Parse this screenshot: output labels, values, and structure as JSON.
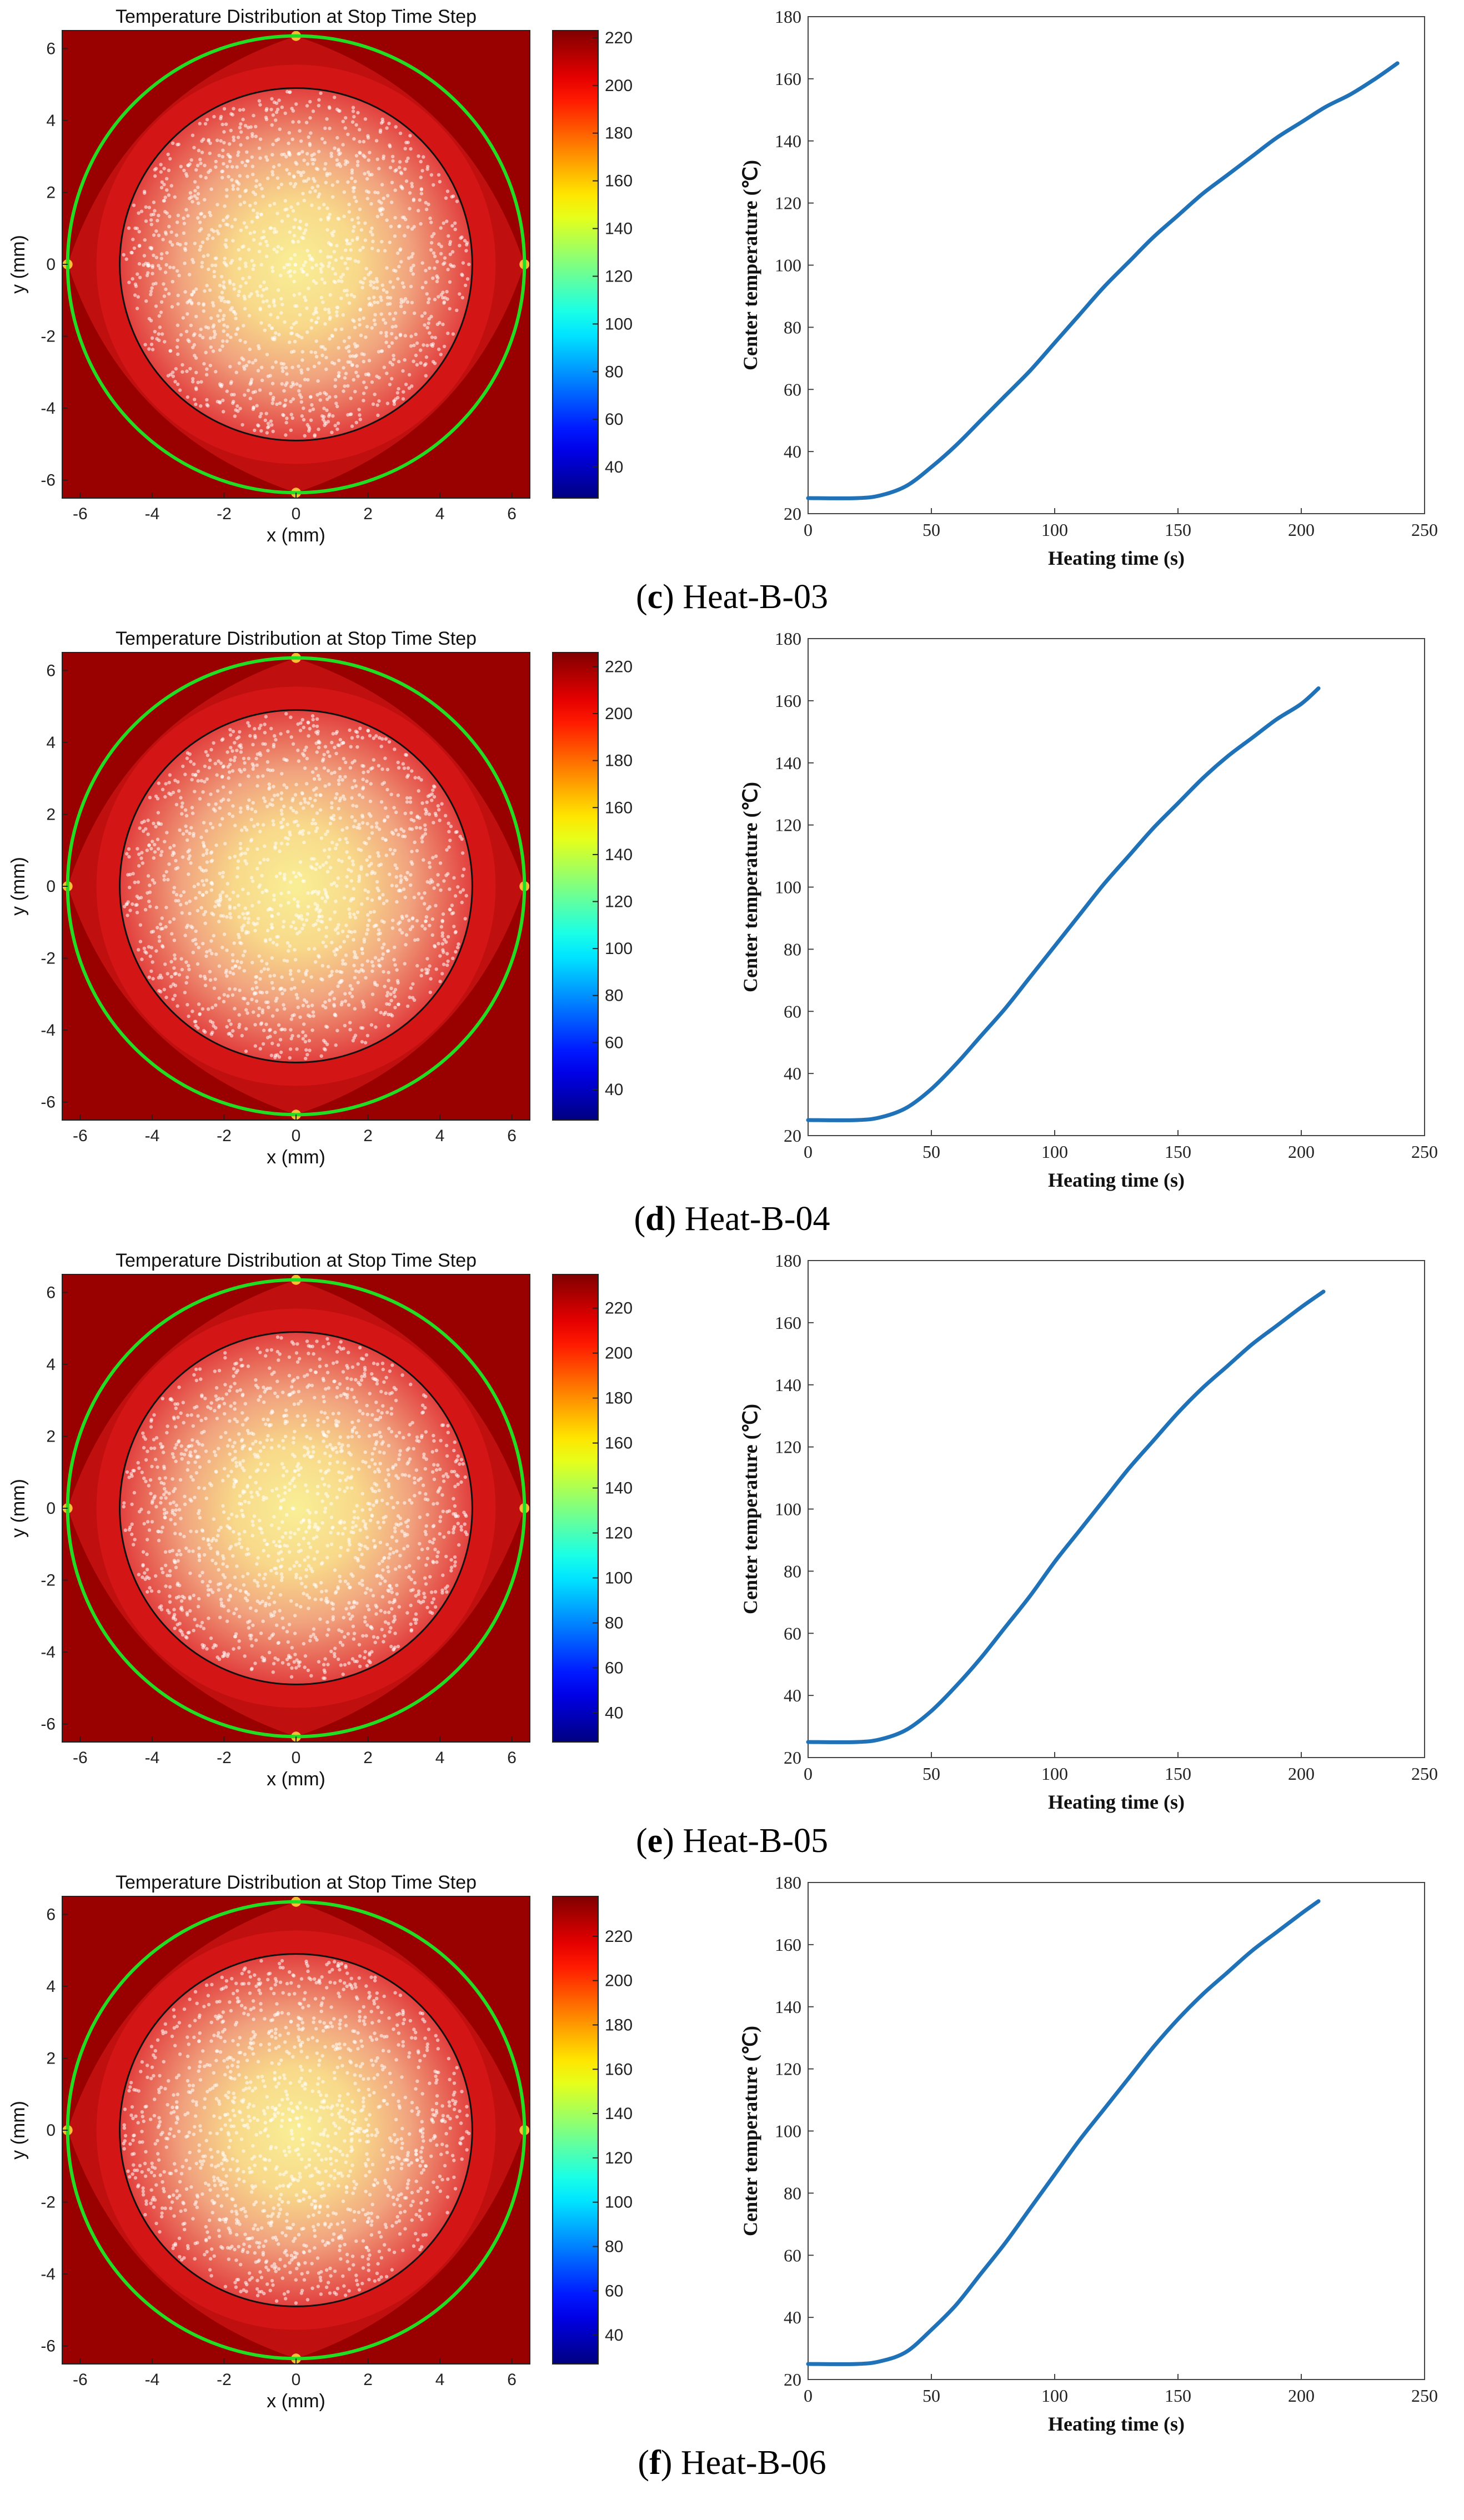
{
  "chart_data": [
    {
      "id": "c",
      "caption_letter": "c",
      "caption_text": " Heat-B-03",
      "heatmap": {
        "type": "heatmap",
        "title": "Temperature Distribution at Stop Time Step",
        "xlabel": "x (mm)",
        "ylabel": "y (mm)",
        "xlim": [
          -6.5,
          6.5
        ],
        "ylim": [
          -6.5,
          6.5
        ],
        "xticks": [
          -6,
          -4,
          -2,
          0,
          2,
          4,
          6
        ],
        "yticks": [
          -6,
          -4,
          -2,
          0,
          2,
          4,
          6
        ],
        "colorbar_range": [
          27,
          223
        ],
        "colorbar_ticks": [
          40,
          60,
          80,
          100,
          120,
          140,
          160,
          180,
          200,
          220
        ]
      },
      "line": {
        "type": "line",
        "xlabel": "Heating time (s)",
        "ylabel": "Center temperature (℃)",
        "xlim": [
          0,
          250
        ],
        "ylim": [
          20,
          180
        ],
        "xticks": [
          0,
          50,
          100,
          150,
          200,
          250
        ],
        "yticks": [
          20,
          40,
          60,
          80,
          100,
          120,
          140,
          160,
          180
        ],
        "series": [
          {
            "name": "center",
            "x": [
              0,
              20,
              30,
              40,
              50,
              60,
              70,
              80,
              90,
              100,
              110,
              120,
              130,
              140,
              150,
              160,
              170,
              180,
              190,
              200,
              210,
              220,
              230,
              239
            ],
            "y": [
              25,
              25,
              26,
              29,
              35,
              42,
              50,
              58,
              66,
              75,
              84,
              93,
              101,
              109,
              116,
              123,
              129,
              135,
              141,
              146,
              151,
              155,
              160,
              165
            ]
          }
        ]
      }
    },
    {
      "id": "d",
      "caption_letter": "d",
      "caption_text": " Heat-B-04",
      "heatmap": {
        "type": "heatmap",
        "title": "Temperature Distribution at Stop Time Step",
        "xlabel": "x (mm)",
        "ylabel": "y (mm)",
        "xlim": [
          -6.5,
          6.5
        ],
        "ylim": [
          -6.5,
          6.5
        ],
        "xticks": [
          -6,
          -4,
          -2,
          0,
          2,
          4,
          6
        ],
        "yticks": [
          -6,
          -4,
          -2,
          0,
          2,
          4,
          6
        ],
        "colorbar_range": [
          27,
          226
        ],
        "colorbar_ticks": [
          40,
          60,
          80,
          100,
          120,
          140,
          160,
          180,
          200,
          220
        ]
      },
      "line": {
        "type": "line",
        "xlabel": "Heating time (s)",
        "ylabel": "Center temperature (℃)",
        "xlim": [
          0,
          250
        ],
        "ylim": [
          20,
          180
        ],
        "xticks": [
          0,
          50,
          100,
          150,
          200,
          250
        ],
        "yticks": [
          20,
          40,
          60,
          80,
          100,
          120,
          140,
          160,
          180
        ],
        "series": [
          {
            "name": "center",
            "x": [
              0,
              20,
              30,
              40,
              50,
              60,
              70,
              80,
              90,
              100,
              110,
              120,
              130,
              140,
              150,
              160,
              170,
              180,
              190,
              200,
              207
            ],
            "y": [
              25,
              25,
              26,
              29,
              35,
              43,
              52,
              61,
              71,
              81,
              91,
              101,
              110,
              119,
              127,
              135,
              142,
              148,
              154,
              159,
              164
            ]
          }
        ]
      }
    },
    {
      "id": "e",
      "caption_letter": "e",
      "caption_text": " Heat-B-05",
      "heatmap": {
        "type": "heatmap",
        "title": "Temperature Distribution at Stop Time Step",
        "xlabel": "x (mm)",
        "ylabel": "y (mm)",
        "xlim": [
          -6.5,
          6.5
        ],
        "ylim": [
          -6.5,
          6.5
        ],
        "xticks": [
          -6,
          -4,
          -2,
          0,
          2,
          4,
          6
        ],
        "yticks": [
          -6,
          -4,
          -2,
          0,
          2,
          4,
          6
        ],
        "colorbar_range": [
          27,
          235
        ],
        "colorbar_ticks": [
          40,
          60,
          80,
          100,
          120,
          140,
          160,
          180,
          200,
          220
        ]
      },
      "line": {
        "type": "line",
        "xlabel": "Heating time (s)",
        "ylabel": "Center temperature (℃)",
        "xlim": [
          0,
          250
        ],
        "ylim": [
          20,
          180
        ],
        "xticks": [
          0,
          50,
          100,
          150,
          200,
          250
        ],
        "yticks": [
          20,
          40,
          60,
          80,
          100,
          120,
          140,
          160,
          180
        ],
        "series": [
          {
            "name": "center",
            "x": [
              0,
              20,
              30,
              40,
              50,
              60,
              70,
              80,
              90,
              100,
              110,
              120,
              130,
              140,
              150,
              160,
              170,
              180,
              190,
              200,
              209
            ],
            "y": [
              25,
              25,
              26,
              29,
              35,
              43,
              52,
              62,
              72,
              83,
              93,
              103,
              113,
              122,
              131,
              139,
              146,
              153,
              159,
              165,
              170
            ]
          }
        ]
      }
    },
    {
      "id": "f",
      "caption_letter": "f",
      "caption_text": " Heat-B-06",
      "heatmap": {
        "type": "heatmap",
        "title": "Temperature Distribution at Stop Time Step",
        "xlabel": "x (mm)",
        "ylabel": "y (mm)",
        "xlim": [
          -6.5,
          6.5
        ],
        "ylim": [
          -6.5,
          6.5
        ],
        "xticks": [
          -6,
          -4,
          -2,
          0,
          2,
          4,
          6
        ],
        "yticks": [
          -6,
          -4,
          -2,
          0,
          2,
          4,
          6
        ],
        "colorbar_range": [
          27,
          238
        ],
        "colorbar_ticks": [
          40,
          60,
          80,
          100,
          120,
          140,
          160,
          180,
          200,
          220
        ]
      },
      "line": {
        "type": "line",
        "xlabel": "Heating time (s)",
        "ylabel": "Center temperature (℃)",
        "xlim": [
          0,
          250
        ],
        "ylim": [
          20,
          180
        ],
        "xticks": [
          0,
          50,
          100,
          150,
          200,
          250
        ],
        "yticks": [
          20,
          40,
          60,
          80,
          100,
          120,
          140,
          160,
          180
        ],
        "series": [
          {
            "name": "center",
            "x": [
              0,
              20,
              30,
              40,
              50,
              60,
              70,
              80,
              90,
              100,
              110,
              120,
              130,
              140,
              150,
              160,
              170,
              180,
              190,
              200,
              207
            ],
            "y": [
              25,
              25,
              26,
              29,
              36,
              44,
              54,
              64,
              75,
              86,
              97,
              107,
              117,
              127,
              136,
              144,
              151,
              158,
              164,
              170,
              174
            ]
          }
        ]
      }
    }
  ],
  "colors": {
    "line": "#1f72b8",
    "boundary_circle": "#22dd22",
    "dark_red": "#990000",
    "red": "#d61b1b"
  }
}
